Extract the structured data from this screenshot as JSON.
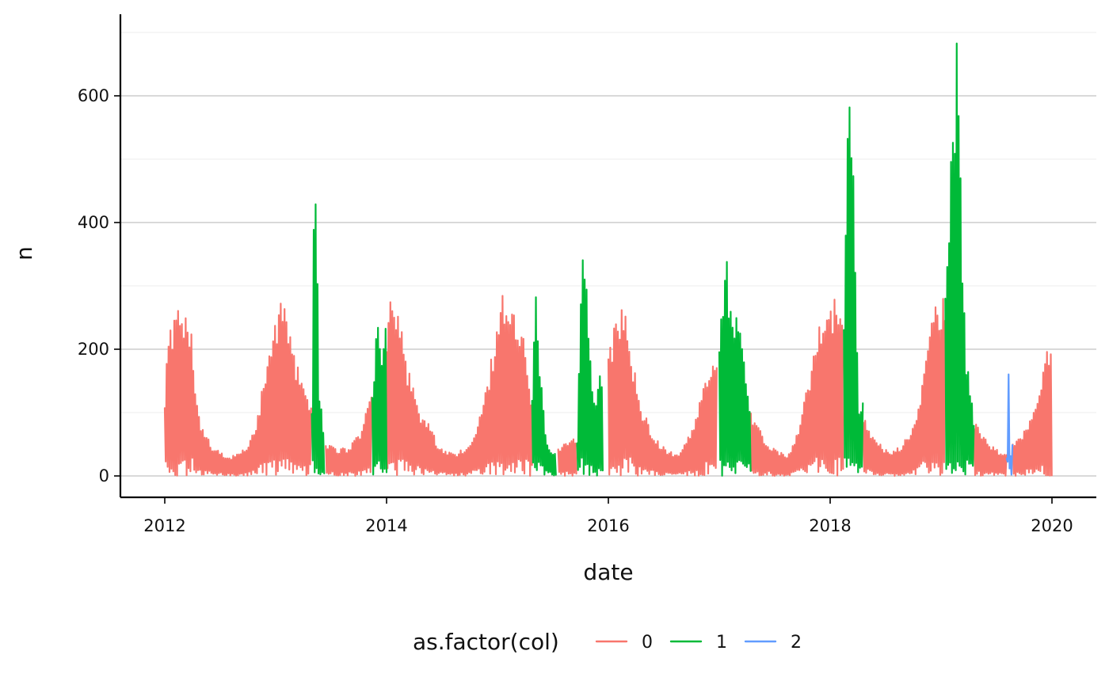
{
  "chart_data": {
    "type": "line",
    "title": "",
    "xlabel": "date",
    "ylabel": "n",
    "x_ticks": [
      "2012",
      "2014",
      "2016",
      "2018",
      "2020"
    ],
    "y_ticks": [
      "0",
      "200",
      "400",
      "600"
    ],
    "xlim": [
      "2011-12-01",
      "2020-05-01"
    ],
    "ylim": [
      -35,
      725
    ],
    "grid": "horizontal",
    "legend_position": "bottom",
    "legend": {
      "title": "as.factor(col)",
      "entries": [
        {
          "label": "0",
          "color": "#F8766D"
        },
        {
          "label": "1",
          "color": "#00BA38"
        },
        {
          "label": "2",
          "color": "#619CFF"
        }
      ]
    },
    "series": [
      {
        "name": "0",
        "color": "#F8766D",
        "segments": [
          {
            "points": [
              [
                "2012-01-01",
                130
              ],
              [
                "2012-01-15",
                240
              ],
              [
                "2012-02-01",
                260
              ],
              [
                "2012-02-15",
                290
              ],
              [
                "2012-03-01",
                270
              ],
              [
                "2012-03-15",
                245
              ],
              [
                "2012-04-01",
                220
              ],
              [
                "2012-04-15",
                125
              ],
              [
                "2012-05-01",
                85
              ],
              [
                "2012-06-01",
                50
              ],
              [
                "2012-07-01",
                40
              ],
              [
                "2012-08-01",
                30
              ],
              [
                "2012-09-01",
                35
              ],
              [
                "2012-10-01",
                50
              ],
              [
                "2012-11-01",
                90
              ],
              [
                "2012-12-01",
                185
              ],
              [
                "2013-01-01",
                250
              ],
              [
                "2013-02-01",
                300
              ],
              [
                "2013-03-01",
                200
              ],
              [
                "2013-04-01",
                140
              ],
              [
                "2013-04-30",
                120
              ]
            ]
          },
          {
            "points": [
              [
                "2013-06-15",
                50
              ],
              [
                "2013-07-15",
                45
              ],
              [
                "2013-09-01",
                45
              ],
              [
                "2013-10-15",
                80
              ],
              [
                "2013-11-15",
                145
              ]
            ]
          },
          {
            "points": [
              [
                "2014-01-01",
                250
              ],
              [
                "2014-01-20",
                300
              ],
              [
                "2014-02-10",
                280
              ],
              [
                "2014-03-10",
                180
              ],
              [
                "2014-04-15",
                110
              ],
              [
                "2014-05-15",
                90
              ],
              [
                "2014-06-15",
                55
              ],
              [
                "2014-07-15",
                40
              ],
              [
                "2014-08-15",
                35
              ],
              [
                "2014-09-15",
                45
              ],
              [
                "2014-10-15",
                65
              ],
              [
                "2014-11-15",
                110
              ],
              [
                "2014-12-15",
                200
              ],
              [
                "2015-01-15",
                295
              ],
              [
                "2015-02-15",
                270
              ],
              [
                "2015-03-15",
                250
              ],
              [
                "2015-04-10",
                200
              ],
              [
                "2015-04-25",
                120
              ]
            ]
          },
          {
            "points": [
              [
                "2015-07-20",
                45
              ],
              [
                "2015-08-20",
                55
              ],
              [
                "2015-09-20",
                60
              ]
            ]
          },
          {
            "points": [
              [
                "2016-01-01",
                200
              ],
              [
                "2016-02-01",
                270
              ],
              [
                "2016-02-20",
                275
              ],
              [
                "2016-03-15",
                200
              ],
              [
                "2016-04-15",
                120
              ],
              [
                "2016-05-15",
                80
              ],
              [
                "2016-06-15",
                55
              ],
              [
                "2016-07-15",
                40
              ],
              [
                "2016-08-15",
                35
              ],
              [
                "2016-09-15",
                55
              ],
              [
                "2016-10-15",
                90
              ],
              [
                "2016-11-15",
                150
              ],
              [
                "2016-12-25",
                205
              ]
            ]
          },
          {
            "points": [
              [
                "2017-04-15",
                100
              ],
              [
                "2017-05-15",
                75
              ],
              [
                "2017-06-15",
                50
              ],
              [
                "2017-07-15",
                40
              ],
              [
                "2017-08-15",
                35
              ],
              [
                "2017-09-15",
                70
              ],
              [
                "2017-10-15",
                140
              ],
              [
                "2017-11-15",
                210
              ],
              [
                "2017-12-15",
                280
              ],
              [
                "2018-01-15",
                280
              ],
              [
                "2018-02-15",
                240
              ]
            ]
          },
          {
            "points": [
              [
                "2018-04-20",
                100
              ],
              [
                "2018-05-15",
                65
              ],
              [
                "2018-06-15",
                50
              ],
              [
                "2018-07-15",
                40
              ],
              [
                "2018-08-15",
                45
              ],
              [
                "2018-09-15",
                65
              ],
              [
                "2018-10-15",
                110
              ],
              [
                "2018-11-15",
                200
              ],
              [
                "2018-12-15",
                280
              ],
              [
                "2019-01-15",
                300
              ]
            ]
          },
          {
            "points": [
              [
                "2019-04-20",
                95
              ],
              [
                "2019-05-15",
                65
              ],
              [
                "2019-06-15",
                50
              ],
              [
                "2019-07-15",
                40
              ],
              [
                "2019-08-05",
                35
              ]
            ]
          },
          {
            "points": [
              [
                "2019-08-25",
                55
              ],
              [
                "2019-09-15",
                60
              ],
              [
                "2019-10-15",
                80
              ],
              [
                "2019-11-15",
                120
              ],
              [
                "2019-12-15",
                215
              ],
              [
                "2020-01-01",
                235
              ]
            ]
          }
        ]
      },
      {
        "name": "1",
        "color": "#00BA38",
        "segments": [
          {
            "points": [
              [
                "2013-04-30",
                120
              ],
              [
                "2013-05-05",
                470
              ],
              [
                "2013-05-15",
                430
              ],
              [
                "2013-05-25",
                150
              ],
              [
                "2013-06-10",
                60
              ]
            ]
          },
          {
            "points": [
              [
                "2013-11-15",
                150
              ],
              [
                "2013-12-01",
                245
              ],
              [
                "2013-12-15",
                190
              ],
              [
                "2014-01-01",
                255
              ]
            ]
          },
          {
            "points": [
              [
                "2015-04-25",
                120
              ],
              [
                "2015-05-05",
                310
              ],
              [
                "2015-05-20",
                170
              ],
              [
                "2015-06-15",
                45
              ],
              [
                "2015-07-15",
                40
              ]
            ]
          },
          {
            "points": [
              [
                "2015-09-20",
                60
              ],
              [
                "2015-10-05",
                375
              ],
              [
                "2015-10-20",
                320
              ],
              [
                "2015-11-15",
                120
              ],
              [
                "2015-12-15",
                185
              ]
            ]
          },
          {
            "points": [
              [
                "2017-01-01",
                215
              ],
              [
                "2017-01-20",
                375
              ],
              [
                "2017-02-05",
                300
              ],
              [
                "2017-03-10",
                245
              ],
              [
                "2017-04-15",
                105
              ]
            ]
          },
          {
            "points": [
              [
                "2018-02-15",
                240
              ],
              [
                "2018-03-05",
                665
              ],
              [
                "2018-03-15",
                630
              ],
              [
                "2018-03-25",
                320
              ],
              [
                "2018-04-05",
                100
              ],
              [
                "2018-04-20",
                120
              ]
            ]
          },
          {
            "points": [
              [
                "2019-01-15",
                300
              ],
              [
                "2019-02-20",
                695
              ],
              [
                "2019-03-01",
                650
              ],
              [
                "2019-03-10",
                345
              ],
              [
                "2019-03-25",
                200
              ],
              [
                "2019-04-20",
                95
              ]
            ]
          }
        ]
      },
      {
        "name": "2",
        "color": "#619CFF",
        "segments": [
          {
            "points": [
              [
                "2019-08-05",
                35
              ],
              [
                "2019-08-10",
                235
              ],
              [
                "2019-08-15",
                60
              ],
              [
                "2019-08-20",
                5
              ],
              [
                "2019-08-25",
                70
              ]
            ]
          }
        ]
      }
    ]
  }
}
